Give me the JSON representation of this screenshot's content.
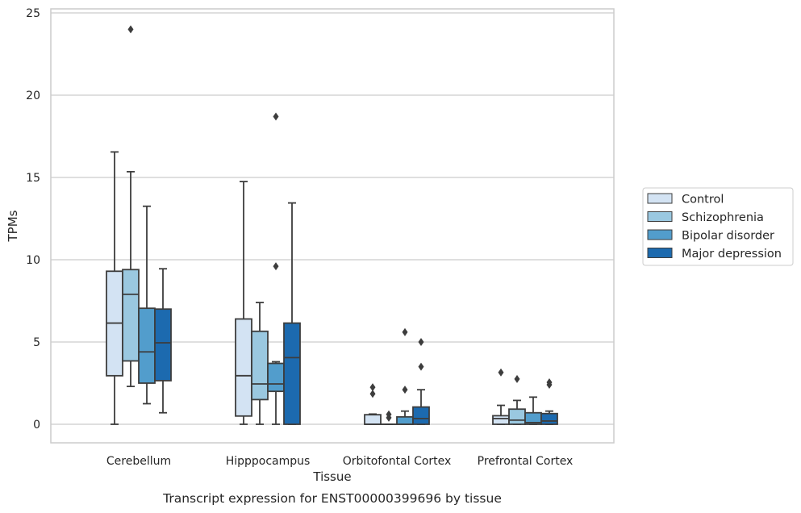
{
  "chart_data": {
    "type": "box",
    "caption": "Transcript expression for ENST00000399696 by tissue",
    "xlabel": "Tissue",
    "ylabel": "TPMs",
    "ylim": [
      -1.1,
      25.3
    ],
    "yticks": [
      0,
      5,
      10,
      15,
      20,
      25
    ],
    "grid": "horizontal",
    "legend_position": "right-outside",
    "categories": [
      "Cerebellum",
      "Hipppocampus",
      "Orbitofontal Cortex",
      "Prefrontal Cortex"
    ],
    "series": [
      {
        "name": "Control",
        "color": "#d3e3f3",
        "boxes": [
          {
            "whislo": 0,
            "q1": 2.95,
            "med": 6.15,
            "q3": 9.3,
            "whishi": 16.55,
            "fliers": []
          },
          {
            "whislo": 0,
            "q1": 0.5,
            "med": 2.95,
            "q3": 6.4,
            "whishi": 14.75,
            "fliers": []
          },
          {
            "whislo": 0,
            "q1": 0,
            "med": 0,
            "q3": 0.58,
            "whishi": 0.62,
            "fliers": [
              1.85,
              2.25
            ]
          },
          {
            "whislo": 0,
            "q1": 0,
            "med": 0.35,
            "q3": 0.52,
            "whishi": 1.15,
            "fliers": [
              3.15
            ]
          }
        ]
      },
      {
        "name": "Schizophrenia",
        "color": "#9ac8e0",
        "boxes": [
          {
            "whislo": 2.3,
            "q1": 3.85,
            "med": 7.9,
            "q3": 9.4,
            "whishi": 15.35,
            "fliers": [
              24.0
            ]
          },
          {
            "whislo": 0,
            "q1": 1.5,
            "med": 2.45,
            "q3": 5.65,
            "whishi": 7.4,
            "fliers": []
          },
          {
            "whislo": 0,
            "q1": 0,
            "med": 0,
            "q3": 0,
            "whishi": 0,
            "fliers": [
              0.4,
              0.6
            ]
          },
          {
            "whislo": 0,
            "q1": 0,
            "med": 0.25,
            "q3": 0.92,
            "whishi": 1.45,
            "fliers": [
              2.75
            ]
          }
        ]
      },
      {
        "name": "Bipolar disorder",
        "color": "#529dcc",
        "boxes": [
          {
            "whislo": 1.25,
            "q1": 2.5,
            "med": 4.4,
            "q3": 7.05,
            "whishi": 13.25,
            "fliers": []
          },
          {
            "whislo": 0,
            "q1": 2.0,
            "med": 2.45,
            "q3": 3.7,
            "whishi": 3.8,
            "fliers": [
              9.6,
              18.7
            ]
          },
          {
            "whislo": 0,
            "q1": 0,
            "med": 0,
            "q3": 0.45,
            "whishi": 0.8,
            "fliers": [
              2.1,
              5.6
            ]
          },
          {
            "whislo": 0,
            "q1": 0,
            "med": 0.1,
            "q3": 0.7,
            "whishi": 1.65,
            "fliers": []
          }
        ]
      },
      {
        "name": "Major depression",
        "color": "#1c6aaf",
        "boxes": [
          {
            "whislo": 0.7,
            "q1": 2.65,
            "med": 4.95,
            "q3": 7.0,
            "whishi": 9.45,
            "fliers": []
          },
          {
            "whislo": 0,
            "q1": 0,
            "med": 4.05,
            "q3": 6.15,
            "whishi": 13.45,
            "fliers": []
          },
          {
            "whislo": 0,
            "q1": 0,
            "med": 0.35,
            "q3": 1.05,
            "whishi": 2.1,
            "fliers": [
              3.5,
              5.0
            ]
          },
          {
            "whislo": 0,
            "q1": 0,
            "med": 0.2,
            "q3": 0.65,
            "whishi": 0.8,
            "fliers": [
              2.4,
              2.55
            ]
          }
        ]
      }
    ]
  }
}
